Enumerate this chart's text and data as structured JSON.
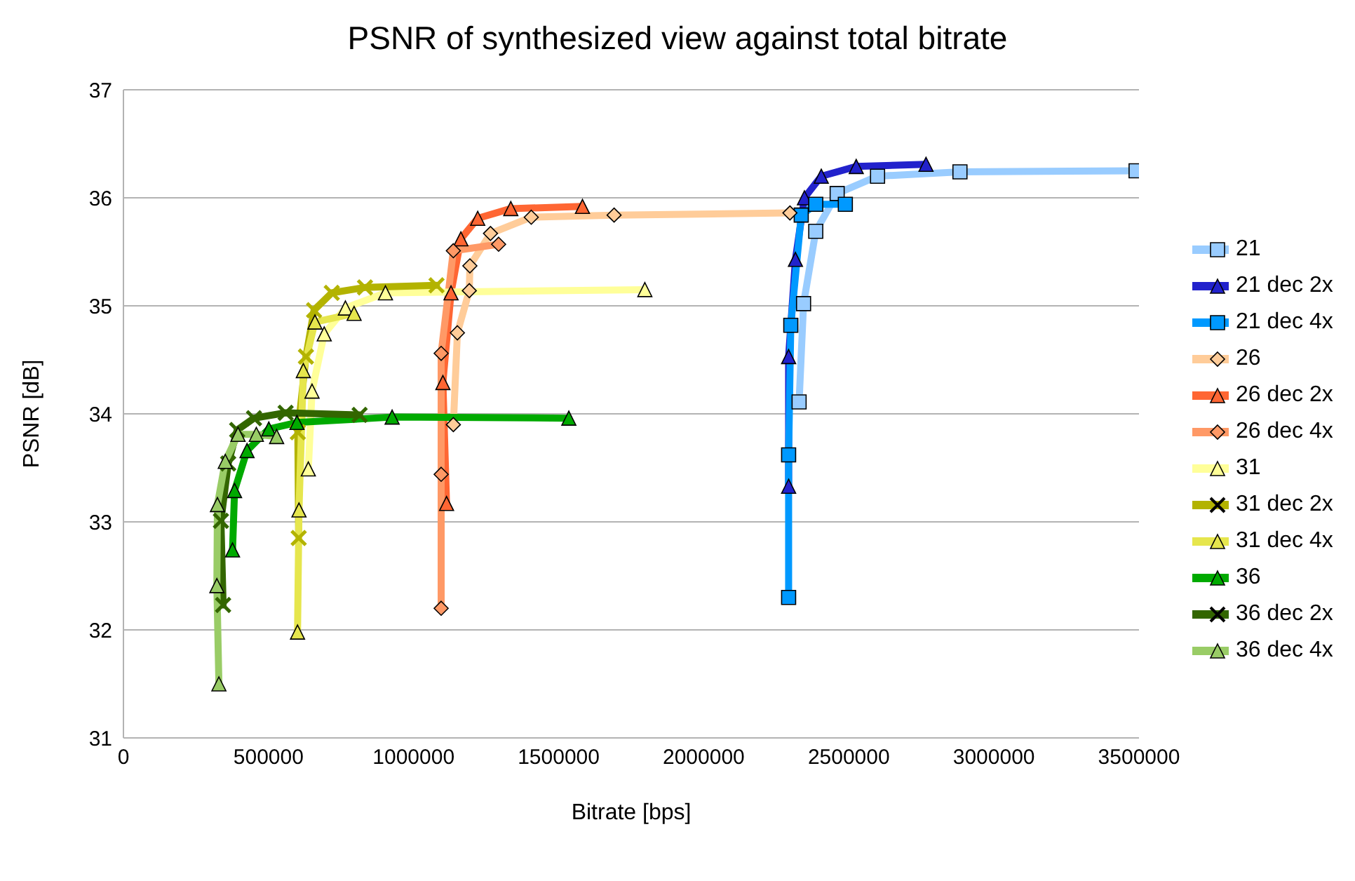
{
  "chart_data": {
    "type": "line",
    "title": "PSNR of synthesized view against total bitrate",
    "xlabel": "Bitrate [bps]",
    "ylabel": "PSNR [dB]",
    "xlim": [
      0,
      3500000
    ],
    "xticks": [
      0,
      500000,
      1000000,
      1500000,
      2000000,
      2500000,
      3000000,
      3500000
    ],
    "ylim": [
      31,
      37
    ],
    "yticks": [
      31,
      32,
      33,
      34,
      35,
      36,
      37
    ],
    "grid": "y",
    "legend": "right",
    "line_style": "solid",
    "series": [
      {
        "name": "21",
        "color": "#99ccff",
        "marker": "square",
        "x": [
          2328600,
          2344000,
          2386000,
          2459800,
          2599000,
          2883000,
          3490000
        ],
        "values": [
          34.11,
          35.02,
          35.69,
          36.04,
          36.2,
          36.24,
          36.25
        ]
      },
      {
        "name": "21 dec 2x",
        "color": "#2222cc",
        "marker": "triangle",
        "x": [
          2292500,
          2292500,
          2316000,
          2347000,
          2405000,
          2525500,
          2766000
        ],
        "values": [
          33.33,
          34.53,
          35.43,
          36.0,
          36.2,
          36.29,
          36.31
        ]
      },
      {
        "name": "21 dec 4x",
        "color": "#0099ff",
        "marker": "square",
        "x": [
          2292500,
          2292500,
          2300000,
          2336000,
          2386000,
          2488000
        ],
        "values": [
          32.3,
          33.62,
          34.82,
          35.84,
          35.94,
          35.94
        ]
      },
      {
        "name": "26",
        "color": "#ffcc99",
        "marker": "diamond",
        "x": [
          1137000,
          1151000,
          1192000,
          1194000,
          1265000,
          1405600,
          1691000,
          2297000
        ],
        "values": [
          33.9,
          34.75,
          35.14,
          35.37,
          35.67,
          35.82,
          35.84,
          35.86
        ]
      },
      {
        "name": "26 dec 2x",
        "color": "#ff6633",
        "marker": "triangle",
        "x": [
          1113600,
          1101000,
          1129000,
          1163000,
          1221000,
          1335000,
          1582000
        ],
        "values": [
          33.17,
          34.29,
          35.12,
          35.62,
          35.81,
          35.9,
          35.92
        ]
      },
      {
        "name": "26 dec 4x",
        "color": "#ff9966",
        "marker": "diamond",
        "x": [
          1095000,
          1095000,
          1095000,
          1137000,
          1293000
        ],
        "values": [
          32.2,
          33.44,
          34.56,
          35.51,
          35.57
        ]
      },
      {
        "name": "31",
        "color": "#ffff99",
        "marker": "triangle",
        "x": [
          637200,
          650000,
          692000,
          765000,
          903000,
          1797000
        ],
        "values": [
          33.49,
          34.21,
          34.74,
          34.98,
          35.12,
          35.15
        ]
      },
      {
        "name": "31 dec 2x",
        "color": "#b3b300",
        "marker": "cross",
        "x": [
          604000,
          601000,
          629000,
          657000,
          718000,
          832500,
          1079000
        ],
        "values": [
          32.85,
          33.83,
          34.53,
          34.96,
          35.12,
          35.17,
          35.19
        ]
      },
      {
        "name": "31 dec 4x",
        "color": "#e6e64d",
        "marker": "triangle",
        "x": [
          600000,
          605000,
          620000,
          660000,
          795000
        ],
        "values": [
          31.98,
          33.11,
          34.4,
          34.85,
          34.93
        ]
      },
      {
        "name": "36",
        "color": "#00aa00",
        "marker": "triangle",
        "x": [
          376000,
          383000,
          426000,
          501000,
          598000,
          926000,
          1535000
        ],
        "values": [
          32.74,
          33.29,
          33.66,
          33.86,
          33.92,
          33.97,
          33.96
        ]
      },
      {
        "name": "36 dec 2x",
        "color": "#336600",
        "marker": "cross",
        "x": [
          343500,
          336000,
          361000,
          392000,
          450000,
          559000,
          814000
        ],
        "values": [
          32.23,
          33.01,
          33.54,
          33.85,
          33.96,
          34.01,
          33.99
        ]
      },
      {
        "name": "36 dec 4x",
        "color": "#99cc66",
        "marker": "triangle",
        "x": [
          329000,
          322000,
          324000,
          351000,
          395000,
          458000,
          528000
        ],
        "values": [
          31.5,
          32.41,
          33.16,
          33.56,
          33.81,
          33.81,
          33.79
        ]
      }
    ]
  }
}
